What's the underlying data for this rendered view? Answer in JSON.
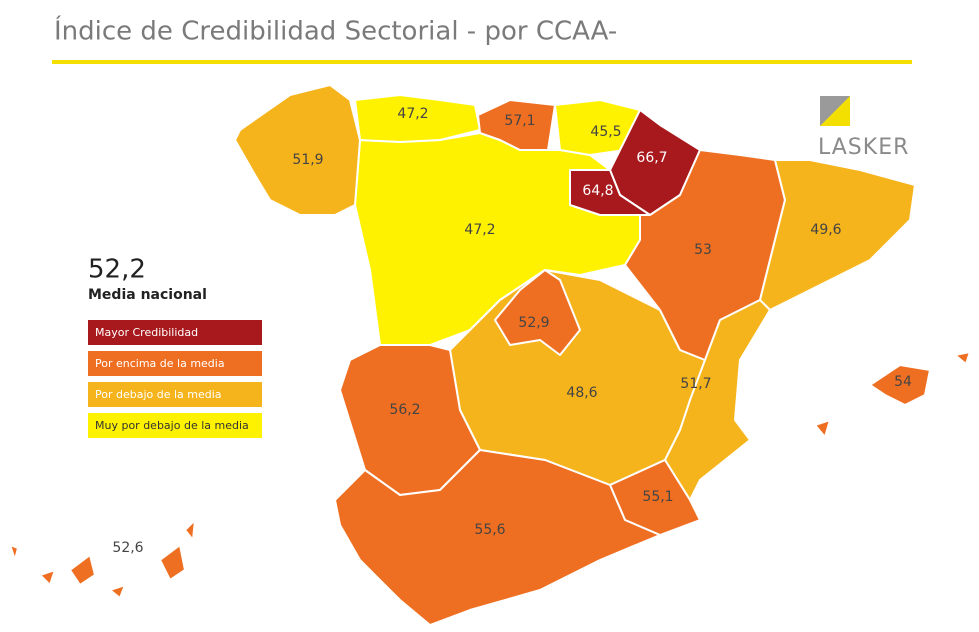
{
  "header": {
    "title": "Índice de Credibilidad Sectorial - por CCAA-"
  },
  "logo": {
    "text": "LASKER"
  },
  "summary": {
    "value": "52,2",
    "label": "Media nacional"
  },
  "legend": [
    {
      "label": "Mayor Credibilidad",
      "color": "#a8191d"
    },
    {
      "label": "Por encima de la media",
      "color": "#ef6f22"
    },
    {
      "label": "Por debajo de la media",
      "color": "#f6b41c"
    },
    {
      "label": "Muy por debajo de la media",
      "color": "#fff200"
    }
  ],
  "regions": [
    {
      "label": "47,2",
      "color": "#fff200"
    },
    {
      "label": "48,6",
      "color": "#f6b41c"
    },
    {
      "label": "51,9",
      "color": "#f6b41c"
    },
    {
      "label": "47,2",
      "color": "#fff200"
    },
    {
      "label": "57,1",
      "color": "#ef6f22"
    },
    {
      "label": "45,5",
      "color": "#fff200"
    },
    {
      "label": "66,7",
      "color": "#a8191d"
    },
    {
      "label": "64,8",
      "color": "#a8191d"
    },
    {
      "label": "53",
      "color": "#ef6f22"
    },
    {
      "label": "49,6",
      "color": "#f6b41c"
    },
    {
      "label": "52,9",
      "color": "#ef6f22"
    },
    {
      "label": "51,7",
      "color": "#f6b41c"
    },
    {
      "label": "56,2",
      "color": "#ef6f22"
    },
    {
      "label": "55,1",
      "color": "#ef6f22"
    },
    {
      "label": "55,6",
      "color": "#ef6f22"
    },
    {
      "label": "54",
      "color": "#ef6f22"
    },
    {
      "label": "52,6",
      "color": "#ef6f22"
    }
  ]
}
